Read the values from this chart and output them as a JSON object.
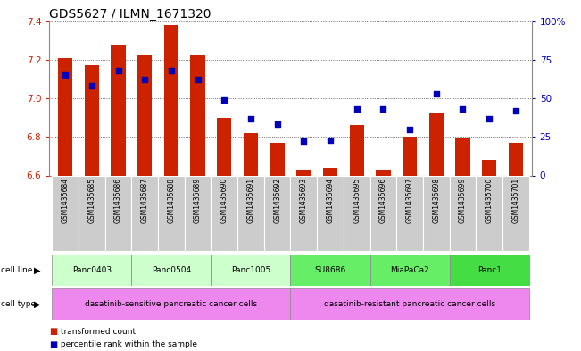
{
  "title": "GDS5627 / ILMN_1671320",
  "samples": [
    "GSM1435684",
    "GSM1435685",
    "GSM1435686",
    "GSM1435687",
    "GSM1435688",
    "GSM1435689",
    "GSM1435690",
    "GSM1435691",
    "GSM1435692",
    "GSM1435693",
    "GSM1435694",
    "GSM1435695",
    "GSM1435696",
    "GSM1435697",
    "GSM1435698",
    "GSM1435699",
    "GSM1435700",
    "GSM1435701"
  ],
  "transformed_count": [
    7.21,
    7.17,
    7.28,
    7.22,
    7.38,
    7.22,
    6.9,
    6.82,
    6.77,
    6.63,
    6.64,
    6.86,
    6.63,
    6.8,
    6.92,
    6.79,
    6.68,
    6.77
  ],
  "percentile_rank": [
    65,
    58,
    68,
    62,
    68,
    62,
    49,
    37,
    33,
    22,
    23,
    43,
    43,
    30,
    53,
    43,
    37,
    42
  ],
  "ylim_left": [
    6.6,
    7.4
  ],
  "ylim_right": [
    0,
    100
  ],
  "yticks_left": [
    6.6,
    6.8,
    7.0,
    7.2,
    7.4
  ],
  "yticks_right": [
    0,
    25,
    50,
    75,
    100
  ],
  "cell_lines": [
    {
      "label": "Panc0403",
      "start": 0,
      "end": 3
    },
    {
      "label": "Panc0504",
      "start": 3,
      "end": 6
    },
    {
      "label": "Panc1005",
      "start": 6,
      "end": 9
    },
    {
      "label": "SU8686",
      "start": 9,
      "end": 12
    },
    {
      "label": "MiaPaCa2",
      "start": 12,
      "end": 15
    },
    {
      "label": "Panc1",
      "start": 15,
      "end": 18
    }
  ],
  "cell_line_colors": [
    "#CCFFCC",
    "#CCFFCC",
    "#CCFFCC",
    "#66EE66",
    "#66EE66",
    "#44DD44"
  ],
  "cell_types": [
    {
      "label": "dasatinib-sensitive pancreatic cancer cells",
      "start": 0,
      "end": 9
    },
    {
      "label": "dasatinib-resistant pancreatic cancer cells",
      "start": 9,
      "end": 18
    }
  ],
  "bar_color": "#CC2200",
  "dot_color": "#0000BB",
  "cell_type_color": "#EE88EE",
  "tick_label_fontsize": 7.5,
  "title_fontsize": 10,
  "axis_color_left": "#CC2200",
  "axis_color_right": "#0000BB",
  "base_value": 6.6,
  "grid_color": "#444444"
}
